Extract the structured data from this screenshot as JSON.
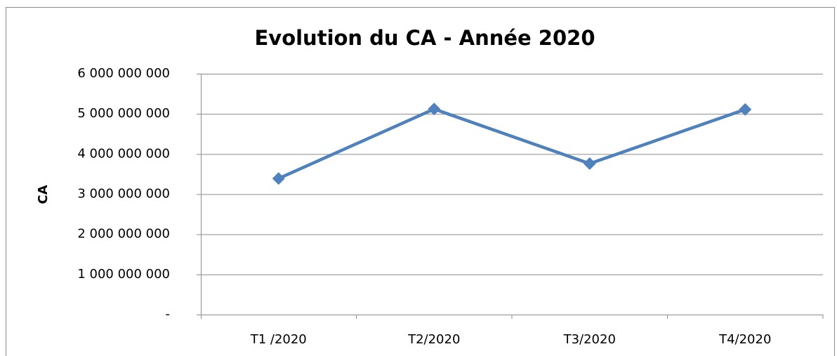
{
  "chart_data": {
    "type": "line",
    "title": "Evolution du CA - Année 2020",
    "ylabel": "CA",
    "categories": [
      "T1 /2020",
      "T2/2020",
      "T3/2020",
      "T4/2020"
    ],
    "values": [
      3390000000,
      5120000000,
      3760000000,
      5110000000
    ],
    "color": "#4f81bd",
    "ylim": [
      0,
      6000000000
    ],
    "yticks": [
      {
        "value": 0,
        "label": "-"
      },
      {
        "value": 1000000000,
        "label": "1 000 000 000"
      },
      {
        "value": 2000000000,
        "label": "2 000 000 000"
      },
      {
        "value": 3000000000,
        "label": "3 000 000 000"
      },
      {
        "value": 4000000000,
        "label": "4 000 000 000"
      },
      {
        "value": 5000000000,
        "label": "5 000 000 000"
      },
      {
        "value": 6000000000,
        "label": "6 000 000 000"
      }
    ],
    "grid": true
  }
}
